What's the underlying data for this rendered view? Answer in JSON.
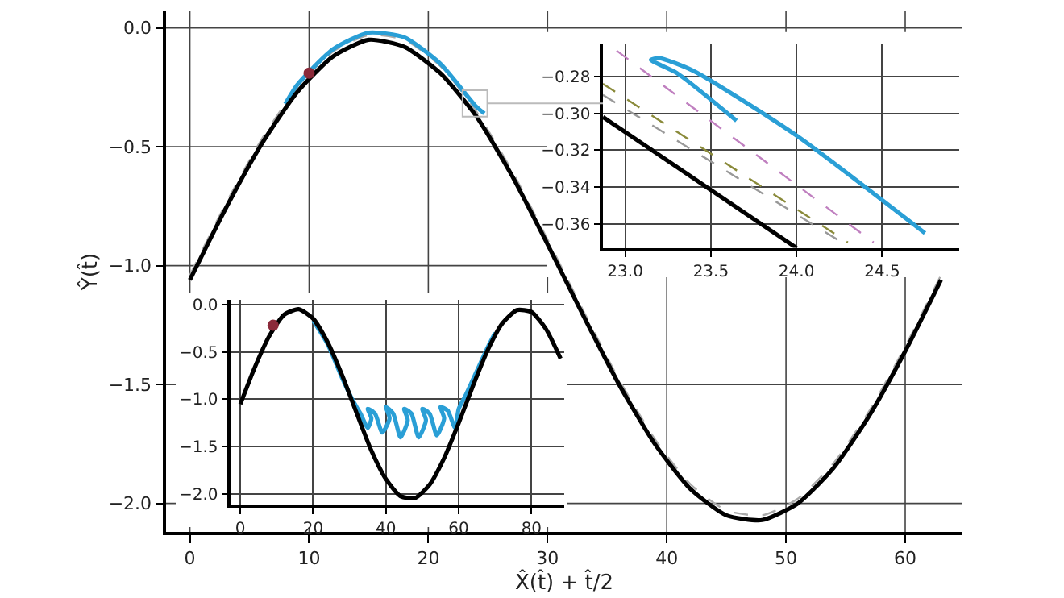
{
  "chart_data": [
    {
      "type": "line",
      "xlabel": "X̂(t̂) + t̂/2",
      "ylabel": "Ŷ(t̂)",
      "xlim": [
        -2,
        64.8
      ],
      "ylim": [
        -2.12,
        0.07
      ],
      "xticks": [
        0,
        10,
        20,
        30,
        40,
        50,
        60
      ],
      "yticks": [
        {
          "value": 0,
          "label": "0.0"
        },
        {
          "value": -0.5,
          "label": "−0.5"
        },
        {
          "value": -1,
          "label": "−1.0"
        },
        {
          "value": -1.5,
          "label": "−1.5"
        },
        {
          "value": -2,
          "label": "−2.0"
        }
      ],
      "grid": true,
      "series": [
        {
          "color": "#aaaaaa",
          "line_style": "dashed",
          "x": [
            0,
            3,
            6,
            9,
            12,
            15,
            18,
            21,
            24,
            27,
            30,
            33,
            36,
            39,
            42,
            45,
            48,
            51,
            54,
            57,
            60,
            63
          ],
          "values": [
            -1.04,
            -0.74,
            -0.47,
            -0.25,
            -0.1,
            -0.03,
            -0.05,
            -0.16,
            -0.35,
            -0.6,
            -0.89,
            -1.19,
            -1.48,
            -1.73,
            -1.92,
            -2.03,
            -2.05,
            -1.98,
            -1.83,
            -1.61,
            -1.34,
            -1.04
          ]
        },
        {
          "color": "#2a9fd6",
          "line_style": "solid",
          "x": [
            8,
            9,
            12,
            15,
            18,
            21,
            24,
            24.7
          ],
          "values": [
            -0.32,
            -0.24,
            -0.09,
            -0.02,
            -0.04,
            -0.15,
            -0.33,
            -0.36
          ]
        },
        {
          "color": "#000000",
          "line_style": "solid",
          "x": [
            0,
            3,
            6,
            9,
            12,
            15,
            18,
            21,
            24,
            27,
            30,
            33,
            36,
            39,
            42,
            45,
            48,
            51,
            54,
            57,
            60,
            63
          ],
          "values": [
            -1.06,
            -0.76,
            -0.49,
            -0.27,
            -0.12,
            -0.05,
            -0.08,
            -0.19,
            -0.37,
            -0.62,
            -0.91,
            -1.21,
            -1.5,
            -1.75,
            -1.94,
            -2.05,
            -2.07,
            -2.0,
            -1.85,
            -1.63,
            -1.36,
            -1.06
          ]
        },
        {
          "type": "scatter",
          "marker": "circle",
          "color": "#8b2a3a",
          "x": [
            10
          ],
          "values": [
            -0.19
          ]
        }
      ]
    },
    {
      "type": "line",
      "xlim": [
        22.87,
        24.95
      ],
      "ylim": [
        -0.373,
        -0.262
      ],
      "xticks": [
        {
          "value": 23,
          "label": "23.0"
        },
        23.5,
        {
          "value": 24,
          "label": "24.0"
        },
        24.5
      ],
      "yticks": [
        {
          "value": -0.28,
          "label": "−0.28"
        },
        {
          "value": -0.3,
          "label": "−0.30"
        },
        {
          "value": -0.32,
          "label": "−0.32"
        },
        {
          "value": -0.34,
          "label": "−0.34"
        },
        {
          "value": -0.36,
          "label": "−0.36"
        }
      ],
      "grid": true,
      "series": [
        {
          "color": "#c080c0",
          "line_style": "dashed",
          "x": [
            22.95,
            24.45
          ],
          "values": [
            -0.266,
            -0.37
          ]
        },
        {
          "color": "#999999",
          "line_style": "dashed",
          "x": [
            22.87,
            24.3
          ],
          "values": [
            -0.29,
            -0.372
          ]
        },
        {
          "color": "#8a8a3a",
          "line_style": "dashed",
          "x": [
            22.87,
            24.3
          ],
          "values": [
            -0.284,
            -0.37
          ]
        },
        {
          "color": "#2a9fd6",
          "line_style": "solid",
          "x": [
            23.65,
            23.3,
            23.15,
            23.2,
            23.4,
            24.0,
            24.75
          ],
          "values": [
            -0.304,
            -0.278,
            -0.271,
            -0.27,
            -0.277,
            -0.312,
            -0.365
          ]
        },
        {
          "color": "#000000",
          "line_style": "solid",
          "x": [
            22.87,
            24.0
          ],
          "values": [
            -0.302,
            -0.373
          ]
        }
      ]
    },
    {
      "type": "line",
      "xlim": [
        -2.7,
        89
      ],
      "ylim": [
        -2.11,
        0.05
      ],
      "xticks": [
        0,
        20,
        40,
        60,
        80
      ],
      "yticks": [
        {
          "value": 0,
          "label": "0.0"
        },
        {
          "value": -0.5,
          "label": "−0.5"
        },
        {
          "value": -1,
          "label": "−1.0"
        },
        {
          "value": -1.5,
          "label": "−1.5"
        },
        {
          "value": -2,
          "label": "−2.0"
        }
      ],
      "grid": true,
      "series": [
        {
          "color": "#2a9fd6",
          "line_style": "solid",
          "x": [
            20,
            24,
            28,
            31,
            33,
            35,
            36,
            35,
            37,
            39,
            41,
            40,
            42,
            44,
            46,
            45,
            47,
            49,
            51,
            50,
            52,
            54,
            56,
            55,
            57,
            59,
            60,
            62,
            65,
            68,
            70
          ],
          "values": [
            -0.17,
            -0.42,
            -0.78,
            -1.02,
            -1.15,
            -1.3,
            -1.2,
            -1.1,
            -1.15,
            -1.35,
            -1.2,
            -1.08,
            -1.15,
            -1.4,
            -1.22,
            -1.1,
            -1.15,
            -1.4,
            -1.22,
            -1.1,
            -1.15,
            -1.38,
            -1.2,
            -1.08,
            -1.12,
            -1.3,
            -1.1,
            -0.95,
            -0.7,
            -0.45,
            -0.3
          ]
        },
        {
          "color": "#000000",
          "line_style": "solid",
          "x": [
            0,
            4,
            8,
            12,
            16,
            20,
            24,
            28,
            32,
            36,
            40,
            44,
            48,
            52,
            56,
            60,
            64,
            68,
            72,
            76,
            80,
            84,
            88
          ],
          "values": [
            -1.05,
            -0.66,
            -0.33,
            -0.11,
            -0.05,
            -0.15,
            -0.4,
            -0.75,
            -1.15,
            -1.54,
            -1.84,
            -2.02,
            -2.04,
            -1.9,
            -1.62,
            -1.25,
            -0.85,
            -0.48,
            -0.2,
            -0.06,
            -0.08,
            -0.26,
            -0.57
          ]
        },
        {
          "type": "scatter",
          "marker": "circle",
          "color": "#8b2a3a",
          "x": [
            9
          ],
          "values": [
            -0.22
          ]
        }
      ]
    }
  ]
}
